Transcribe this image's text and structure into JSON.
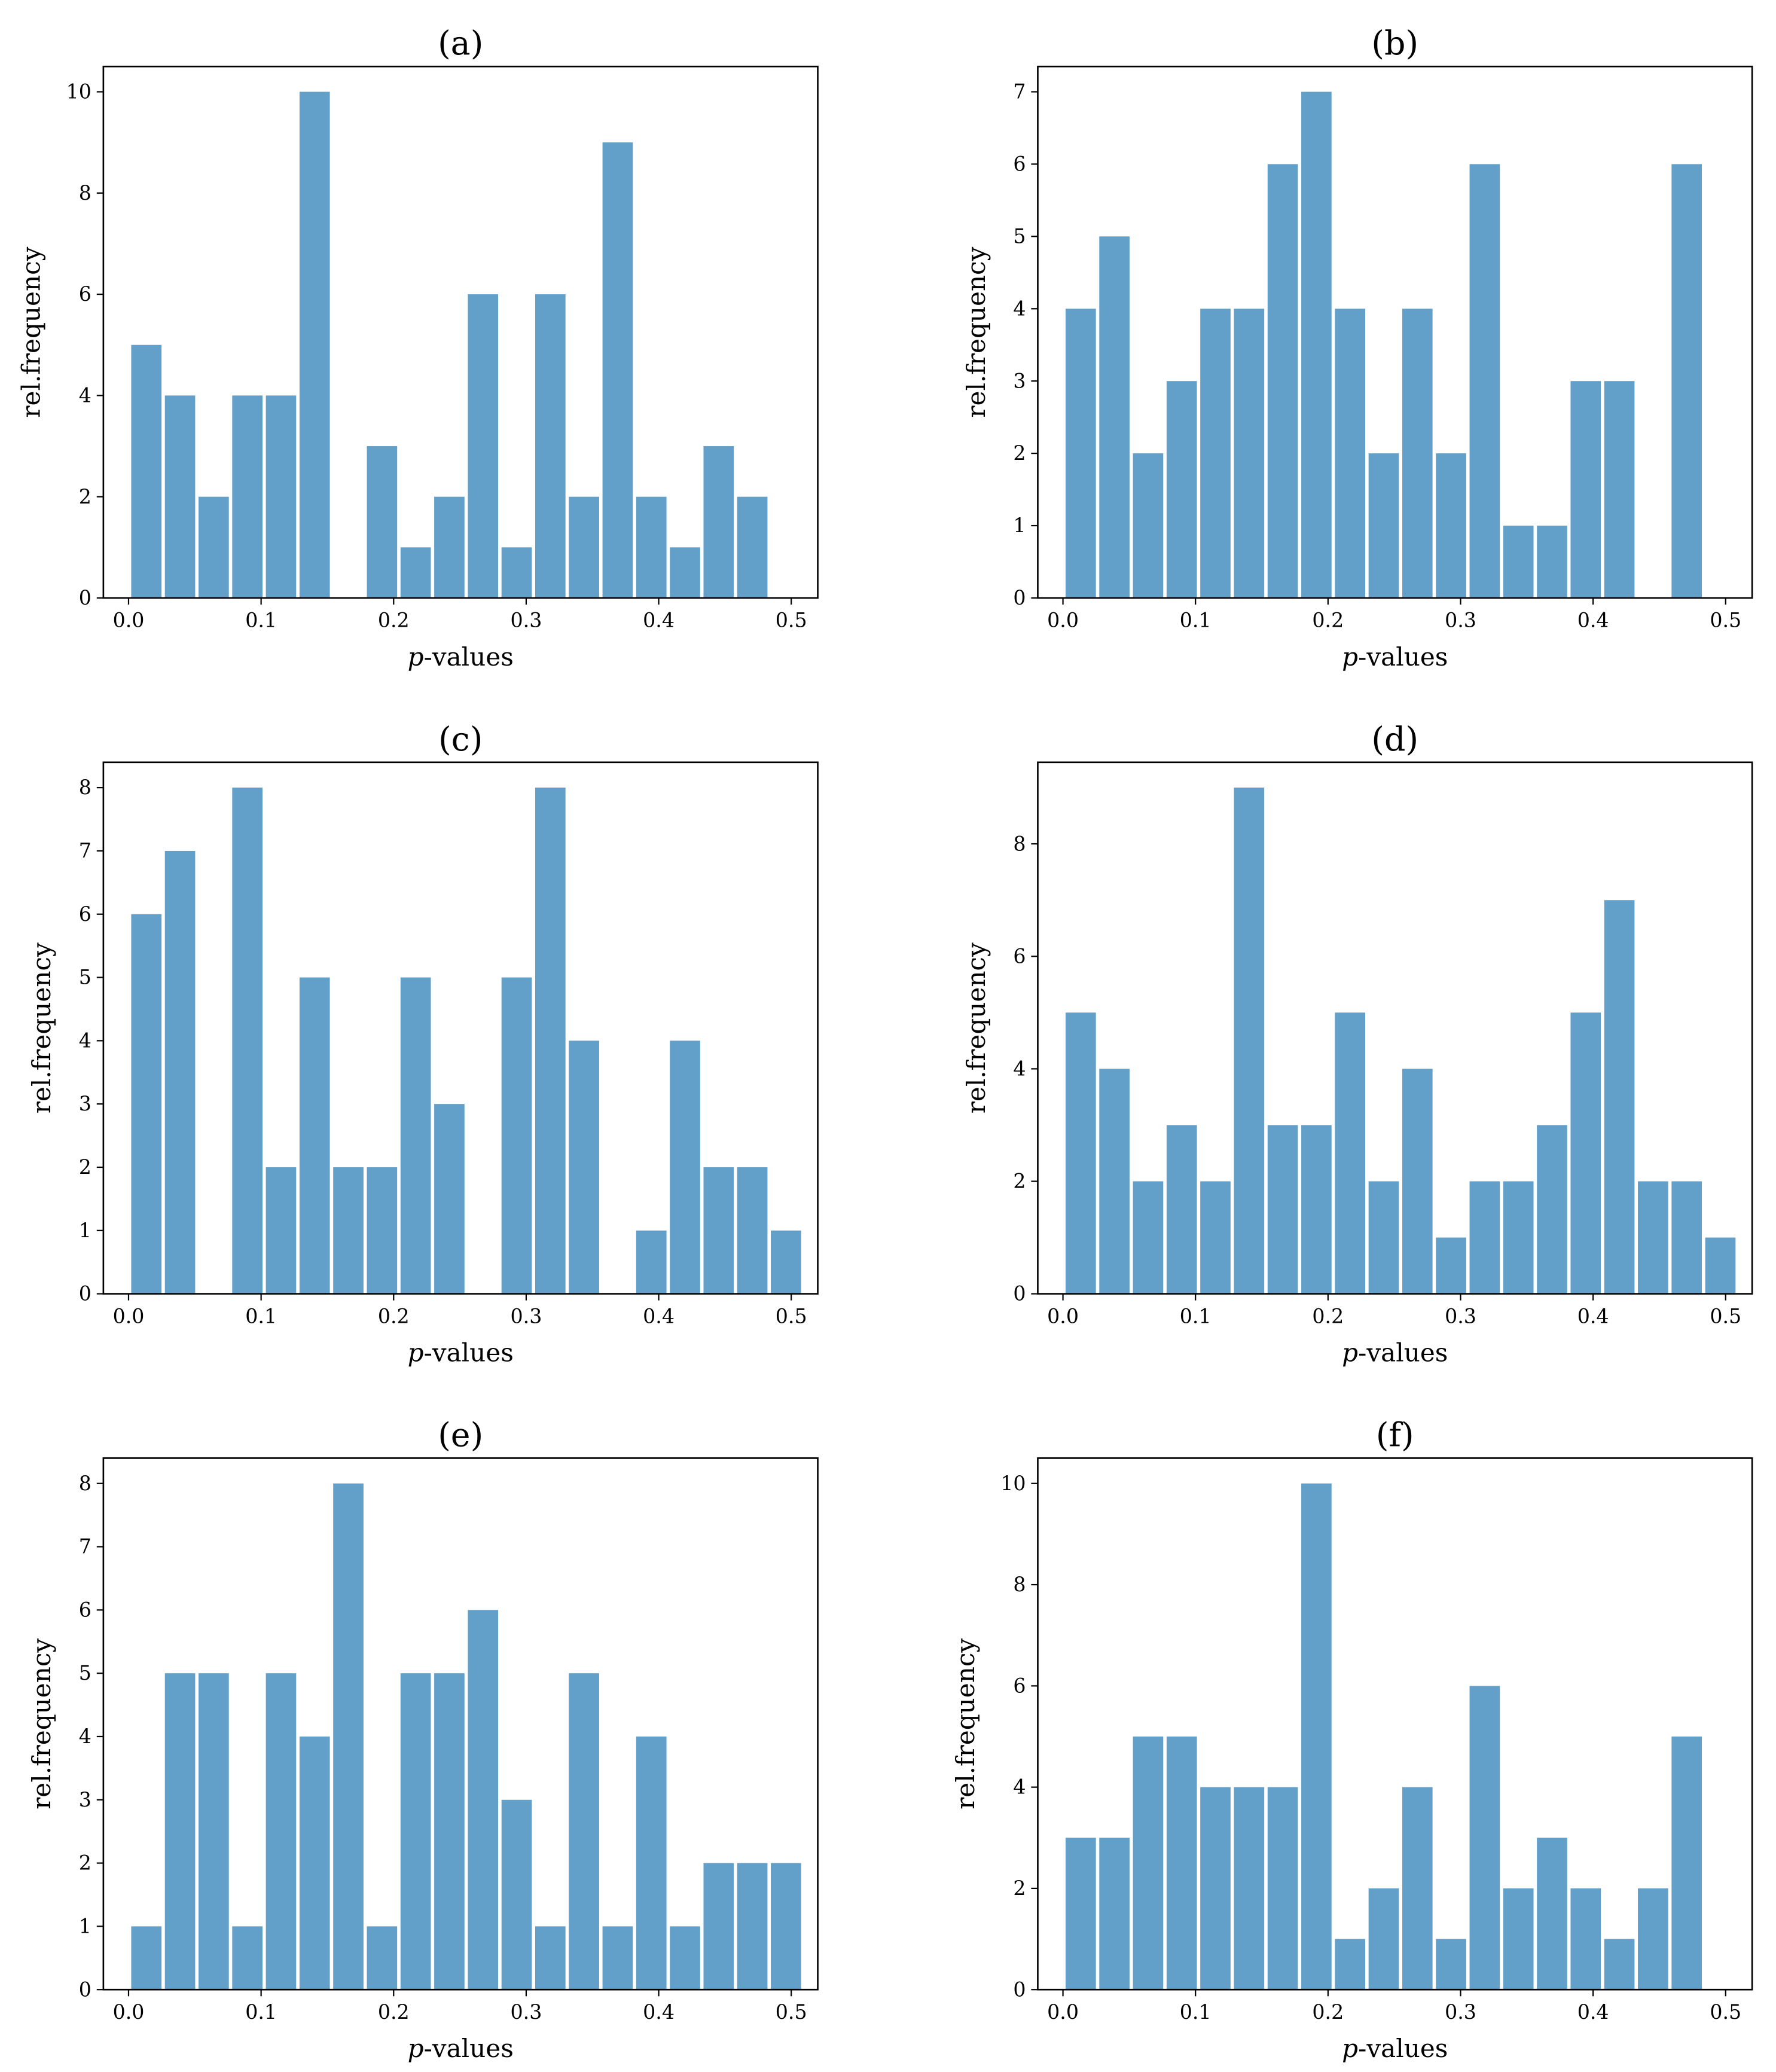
{
  "bar_color": "#62a0ca",
  "chart_data": [
    {
      "type": "bar",
      "title": "(a)",
      "xlabel": "p-values",
      "ylabel": "rel.frequency",
      "xlim": [
        -0.019,
        0.52
      ],
      "ylim": [
        0,
        10.5
      ],
      "xticks": [
        "0.0",
        "0.1",
        "0.2",
        "0.3",
        "0.4",
        "0.5"
      ],
      "yticks": [
        0,
        2,
        4,
        6,
        8,
        10
      ],
      "bin_start": 0.002,
      "bin_width": 0.0254,
      "values": [
        5,
        4,
        2,
        4,
        4,
        10,
        0,
        3,
        1,
        2,
        6,
        1,
        6,
        2,
        9,
        2,
        1,
        3,
        2,
        0
      ]
    },
    {
      "type": "bar",
      "title": "(b)",
      "xlabel": "p-values",
      "ylabel": "rel.frequency",
      "xlim": [
        -0.019,
        0.52
      ],
      "ylim": [
        0,
        7.35
      ],
      "xticks": [
        "0.0",
        "0.1",
        "0.2",
        "0.3",
        "0.4",
        "0.5"
      ],
      "yticks": [
        0,
        1,
        2,
        3,
        4,
        5,
        6,
        7
      ],
      "bin_start": 0.002,
      "bin_width": 0.0254,
      "values": [
        4,
        5,
        2,
        3,
        4,
        4,
        6,
        7,
        4,
        2,
        4,
        2,
        6,
        1,
        1,
        3,
        3,
        0,
        6,
        0
      ]
    },
    {
      "type": "bar",
      "title": "(c)",
      "xlabel": "p-values",
      "ylabel": "rel.frequency",
      "xlim": [
        -0.019,
        0.52
      ],
      "ylim": [
        0,
        8.4
      ],
      "xticks": [
        "0.0",
        "0.1",
        "0.2",
        "0.3",
        "0.4",
        "0.5"
      ],
      "yticks": [
        0,
        1,
        2,
        3,
        4,
        5,
        6,
        7,
        8
      ],
      "bin_start": 0.002,
      "bin_width": 0.0254,
      "values": [
        6,
        7,
        0,
        8,
        2,
        5,
        2,
        2,
        5,
        3,
        0,
        5,
        8,
        4,
        0,
        1,
        4,
        2,
        2,
        1
      ]
    },
    {
      "type": "bar",
      "title": "(d)",
      "xlabel": "p-values",
      "ylabel": "rel.frequency",
      "xlim": [
        -0.019,
        0.52
      ],
      "ylim": [
        0,
        9.45
      ],
      "xticks": [
        "0.0",
        "0.1",
        "0.2",
        "0.3",
        "0.4",
        "0.5"
      ],
      "yticks": [
        0,
        2,
        4,
        6,
        8
      ],
      "bin_start": 0.002,
      "bin_width": 0.0254,
      "values": [
        5,
        4,
        2,
        3,
        2,
        9,
        3,
        3,
        5,
        2,
        4,
        1,
        2,
        2,
        3,
        5,
        7,
        2,
        2,
        1
      ]
    },
    {
      "type": "bar",
      "title": "(e)",
      "xlabel": "p-values",
      "ylabel": "rel.frequency",
      "xlim": [
        -0.019,
        0.52
      ],
      "ylim": [
        0,
        8.4
      ],
      "xticks": [
        "0.0",
        "0.1",
        "0.2",
        "0.3",
        "0.4",
        "0.5"
      ],
      "yticks": [
        0,
        1,
        2,
        3,
        4,
        5,
        6,
        7,
        8
      ],
      "bin_start": 0.002,
      "bin_width": 0.0254,
      "values": [
        1,
        5,
        5,
        1,
        5,
        4,
        8,
        1,
        5,
        5,
        6,
        3,
        1,
        5,
        1,
        4,
        1,
        2,
        2,
        2
      ]
    },
    {
      "type": "bar",
      "title": "(f)",
      "xlabel": "p-values",
      "ylabel": "rel.frequency",
      "xlim": [
        -0.019,
        0.52
      ],
      "ylim": [
        0,
        10.5
      ],
      "xticks": [
        "0.0",
        "0.1",
        "0.2",
        "0.3",
        "0.4",
        "0.5"
      ],
      "yticks": [
        0,
        2,
        4,
        6,
        8,
        10
      ],
      "bin_start": 0.002,
      "bin_width": 0.0254,
      "values": [
        3,
        3,
        5,
        5,
        4,
        4,
        4,
        10,
        1,
        2,
        4,
        1,
        6,
        2,
        3,
        2,
        1,
        2,
        5,
        0
      ]
    }
  ]
}
